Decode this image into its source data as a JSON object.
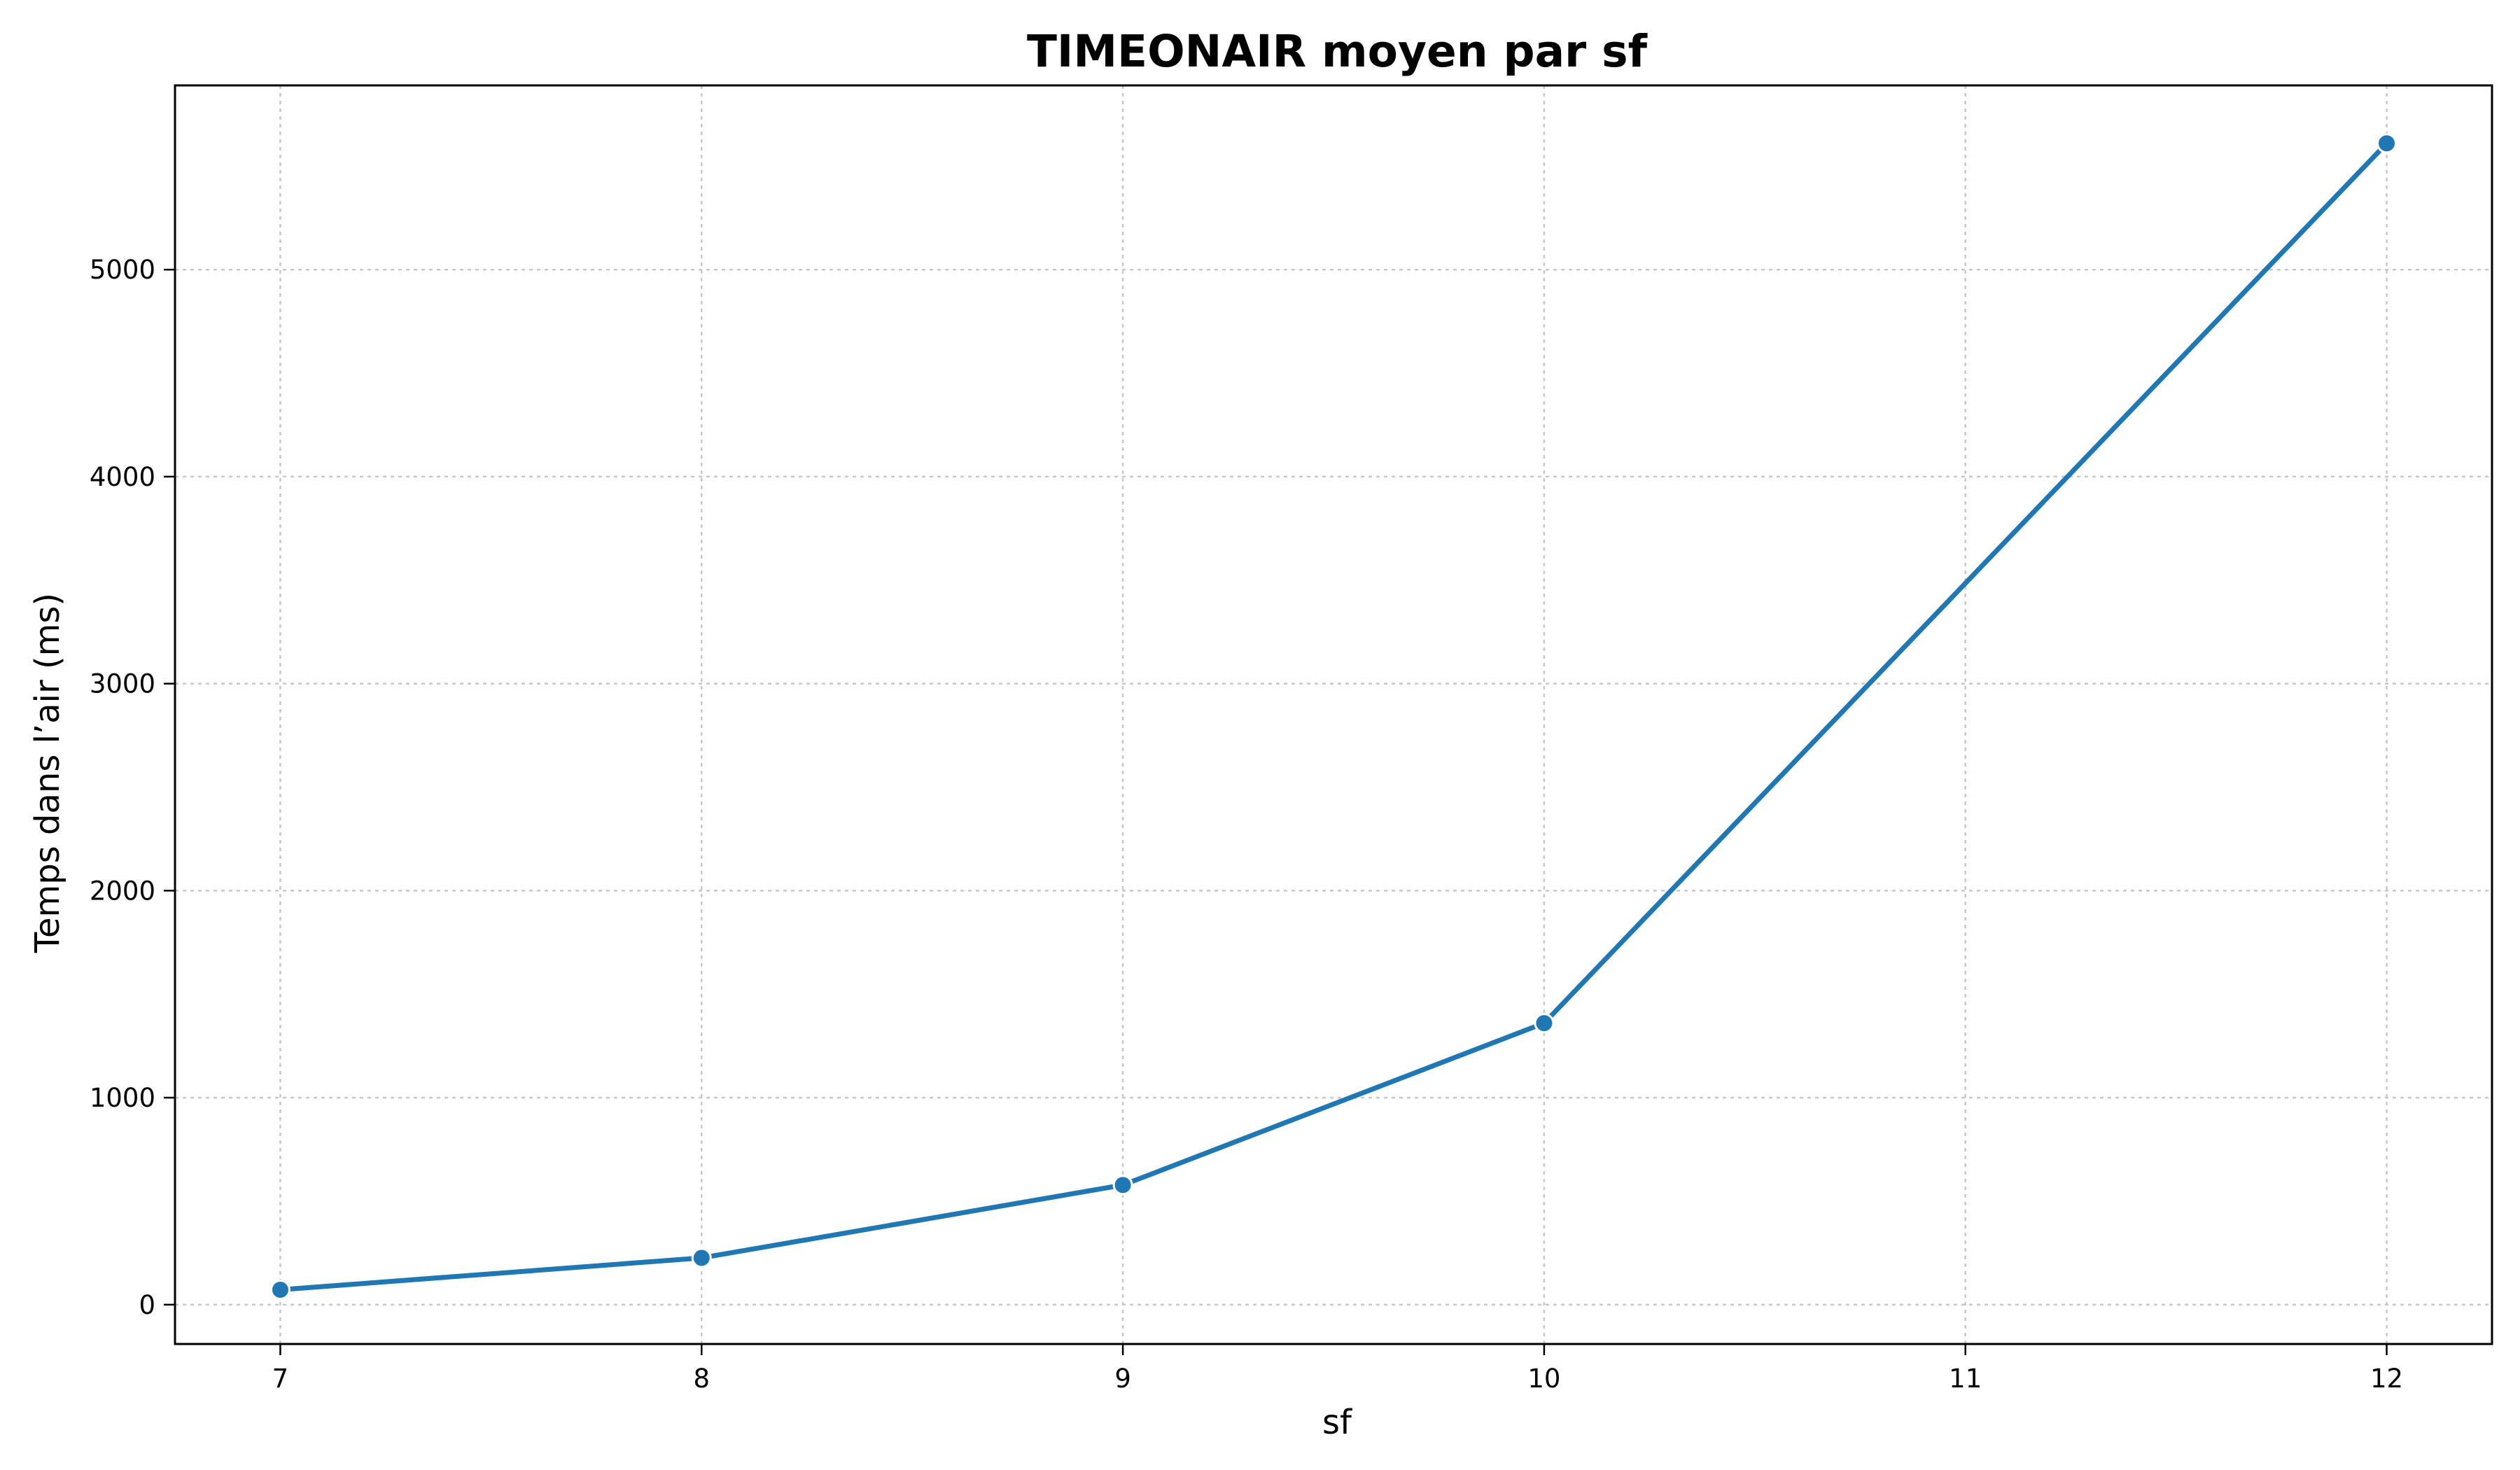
{
  "chart_data": {
    "type": "line",
    "title": "TIMEONAIR moyen par sf",
    "xlabel": "sf",
    "ylabel": "Temps dans l’air (ms)",
    "x": [
      7,
      8,
      9,
      10,
      11,
      12
    ],
    "series": [
      {
        "values": [
          72,
          226,
          578,
          1360,
          3485,
          5610
        ],
        "color": "#1f77b4"
      }
    ],
    "marker_indices": [
      0,
      1,
      2,
      3,
      5
    ],
    "xticks": [
      7,
      8,
      9,
      10,
      11,
      12
    ],
    "yticks": [
      0,
      1000,
      2000,
      3000,
      4000,
      5000
    ],
    "xlim": [
      6.75,
      12.25
    ],
    "ylim": [
      -190,
      5890
    ],
    "grid": true,
    "grid_style": "dotted",
    "legend": "none"
  }
}
